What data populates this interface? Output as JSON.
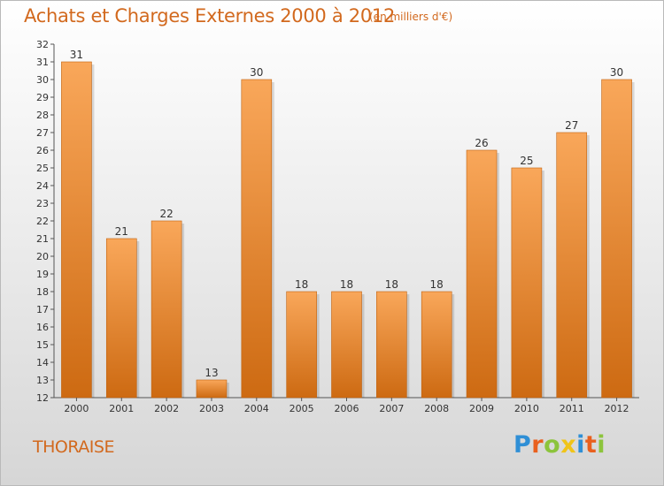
{
  "chart_data": {
    "type": "bar",
    "title": "Achats et Charges Externes 2000 à 2012",
    "subtitle": "(en milliers d'€)",
    "categories": [
      "2000",
      "2001",
      "2002",
      "2003",
      "2004",
      "2005",
      "2006",
      "2007",
      "2008",
      "2009",
      "2010",
      "2011",
      "2012"
    ],
    "values": [
      31,
      21,
      22,
      13,
      30,
      18,
      18,
      18,
      18,
      26,
      25,
      27,
      30
    ],
    "ylim": [
      12,
      32
    ],
    "yticks": [
      12,
      13,
      14,
      15,
      16,
      17,
      18,
      19,
      20,
      21,
      22,
      23,
      24,
      25,
      26,
      27,
      28,
      29,
      30,
      31,
      32
    ],
    "grid": false,
    "legend": "none",
    "bar_color_top": "#f9a75a",
    "bar_color_bottom": "#cd6a12",
    "text_color": "#d2691e"
  },
  "footer": {
    "commune": "THORAISE",
    "logo_letters": [
      {
        "ch": "P",
        "color": "#2f8fd6"
      },
      {
        "ch": "r",
        "color": "#e9601e"
      },
      {
        "ch": "o",
        "color": "#8cc43c"
      },
      {
        "ch": "x",
        "color": "#f0c419"
      },
      {
        "ch": "i",
        "color": "#2f8fd6"
      },
      {
        "ch": "t",
        "color": "#e9601e"
      },
      {
        "ch": "i",
        "color": "#8cc43c"
      }
    ]
  }
}
